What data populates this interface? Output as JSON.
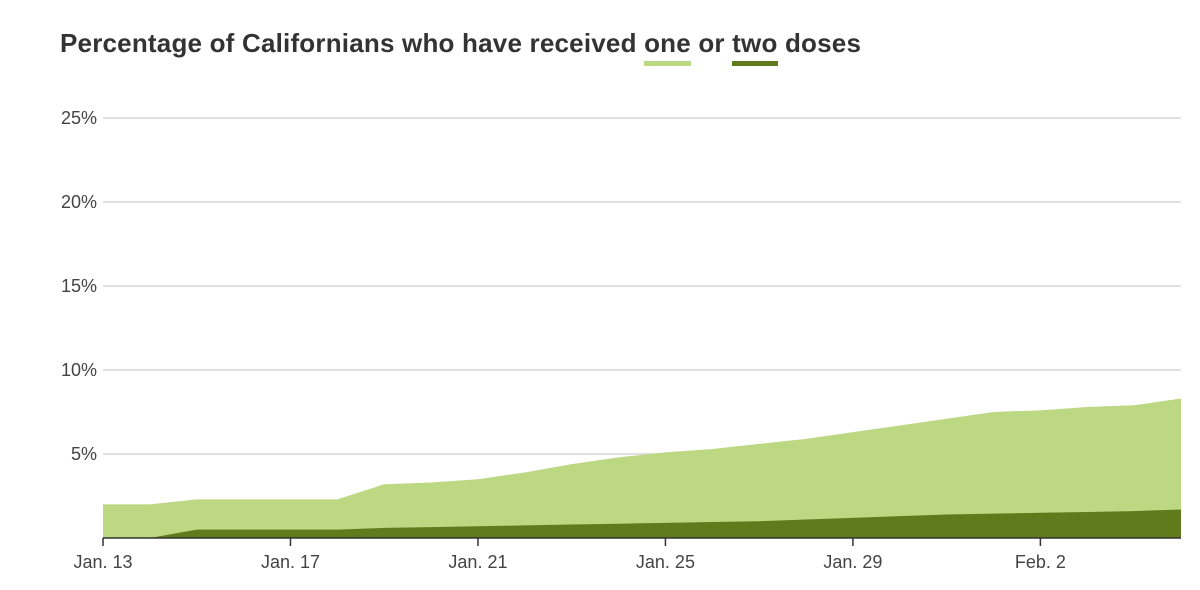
{
  "title": {
    "prefix": "Percentage of Californians who have received ",
    "one": "one",
    "mid": " or ",
    "two": "two",
    "suffix": " doses"
  },
  "colors": {
    "one_dose": "#bcd882",
    "two_doses": "#5f7b1c",
    "grid": "#d6d6d6",
    "axis": "#333333"
  },
  "chart_data": {
    "type": "area",
    "x": [
      "2021-01-13",
      "2021-01-14",
      "2021-01-15",
      "2021-01-16",
      "2021-01-17",
      "2021-01-18",
      "2021-01-19",
      "2021-01-20",
      "2021-01-21",
      "2021-01-22",
      "2021-01-23",
      "2021-01-24",
      "2021-01-25",
      "2021-01-26",
      "2021-01-27",
      "2021-01-28",
      "2021-01-29",
      "2021-01-30",
      "2021-01-31",
      "2021-02-01",
      "2021-02-02",
      "2021-02-03",
      "2021-02-04",
      "2021-02-05"
    ],
    "series": [
      {
        "name": "one",
        "values": [
          2.0,
          2.0,
          2.3,
          2.3,
          2.3,
          2.3,
          3.2,
          3.3,
          3.5,
          3.9,
          4.4,
          4.8,
          5.1,
          5.3,
          5.6,
          5.9,
          6.3,
          6.7,
          7.1,
          7.5,
          7.6,
          7.8,
          7.9,
          8.3
        ]
      },
      {
        "name": "two",
        "values": [
          0.0,
          0.0,
          0.5,
          0.5,
          0.5,
          0.5,
          0.6,
          0.65,
          0.7,
          0.75,
          0.8,
          0.85,
          0.9,
          0.95,
          1.0,
          1.1,
          1.2,
          1.3,
          1.4,
          1.45,
          1.5,
          1.55,
          1.6,
          1.7
        ]
      }
    ],
    "y_ticks": [
      "5%",
      "10%",
      "15%",
      "20%",
      "25%"
    ],
    "y_tick_values": [
      5,
      10,
      15,
      20,
      25
    ],
    "x_ticks": [
      "Jan. 13",
      "Jan. 17",
      "Jan. 21",
      "Jan. 25",
      "Jan. 29",
      "Feb. 2"
    ],
    "x_tick_index": [
      0,
      4,
      8,
      12,
      16,
      20
    ],
    "ylim": [
      0,
      25
    ],
    "grid": true
  }
}
